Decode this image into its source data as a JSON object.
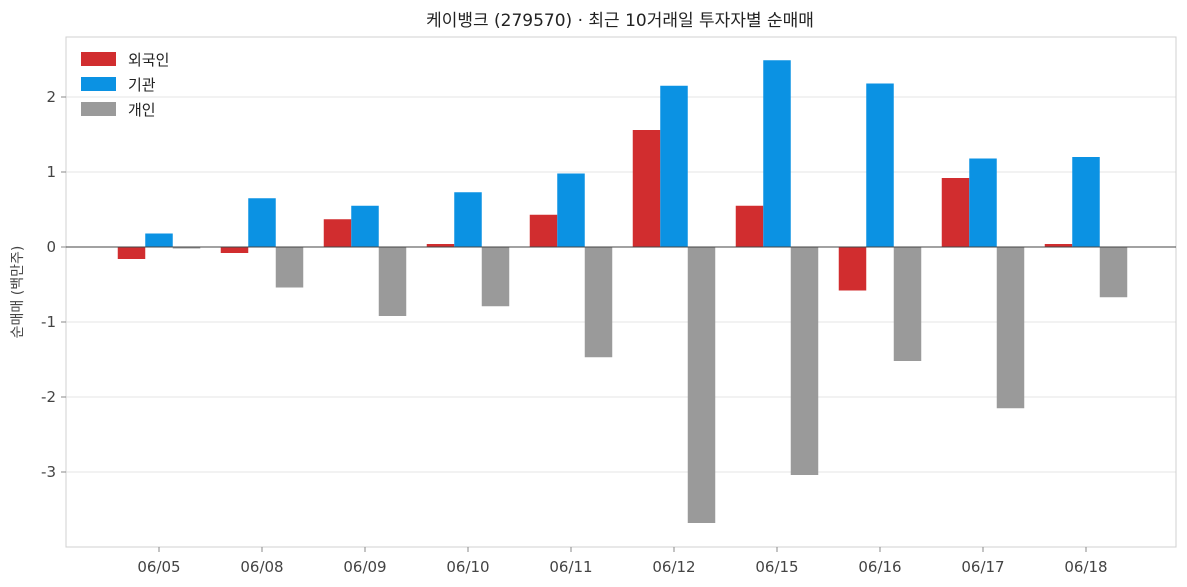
{
  "chart_data": {
    "type": "bar",
    "title": "케이뱅크 (279570) · 최근 10거래일 투자자별 순매매",
    "xlabel": "",
    "ylabel": "순매매 (백만주)",
    "categories": [
      "06/05",
      "06/08",
      "06/09",
      "06/10",
      "06/11",
      "06/12",
      "06/15",
      "06/16",
      "06/17",
      "06/18"
    ],
    "series": [
      {
        "name": "외국인",
        "color": "#d12d2f",
        "values": [
          -0.16,
          -0.08,
          0.37,
          0.04,
          0.43,
          1.56,
          0.55,
          -0.58,
          0.92,
          0.04
        ]
      },
      {
        "name": "기관",
        "color": "#0b92e3",
        "values": [
          0.18,
          0.65,
          0.55,
          0.73,
          0.98,
          2.15,
          2.49,
          2.18,
          1.18,
          1.2
        ]
      },
      {
        "name": "개인",
        "color": "#9a9a9a",
        "values": [
          -0.02,
          -0.54,
          -0.92,
          -0.79,
          -1.47,
          -3.68,
          -3.04,
          -1.52,
          -2.15,
          -0.67
        ]
      }
    ],
    "ylim": [
      -4.0,
      2.8
    ],
    "yticks": [
      -3,
      -2,
      -1,
      0,
      1,
      2
    ],
    "ytick_labels": [
      "-3",
      "-2",
      "-1",
      "0",
      "1",
      "2"
    ],
    "grid": true,
    "legend_position": "top-left"
  }
}
